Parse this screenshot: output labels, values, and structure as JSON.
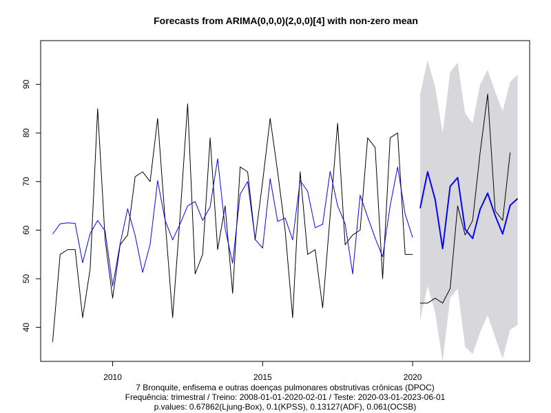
{
  "chart_data": {
    "type": "line",
    "title": "Forecasts from ARIMA(0,0,0)(2,0,0)[4] with non-zero mean",
    "xlabel_lines": [
      "7 Bronquite, enfisema e outras doenças pulmonares obstrutivas crônicas (DPOC)",
      "Frequência: trimestral / Treino: 2008-01-01-2020-02-01 / Teste: 2020-03-01-2023-06-01",
      "p.values: 0.67862(Ljung-Box), 0.1(KPSS), 0.13127(ADF), 0.061(OCSB)"
    ],
    "xlim": [
      2007.6,
      2023.9
    ],
    "ylim": [
      33,
      99
    ],
    "x_ticks": [
      2010,
      2015,
      2020
    ],
    "y_ticks": [
      40,
      50,
      60,
      70,
      80,
      90
    ],
    "grid": false,
    "colors": {
      "observed": "#000000",
      "fitted": "#0000ff",
      "forecast": "#0000ff",
      "interval": "#d8d8dc"
    },
    "observed": {
      "x": [
        2008.0,
        2008.25,
        2008.5,
        2008.75,
        2009.0,
        2009.25,
        2009.5,
        2009.75,
        2010.0,
        2010.25,
        2010.5,
        2010.75,
        2011.0,
        2011.25,
        2011.5,
        2011.75,
        2012.0,
        2012.25,
        2012.5,
        2012.75,
        2013.0,
        2013.25,
        2013.5,
        2013.75,
        2014.0,
        2014.25,
        2014.5,
        2014.75,
        2015.0,
        2015.25,
        2015.5,
        2015.75,
        2016.0,
        2016.25,
        2016.5,
        2016.75,
        2017.0,
        2017.25,
        2017.5,
        2017.75,
        2018.0,
        2018.25,
        2018.5,
        2018.75,
        2019.0,
        2019.25,
        2019.5,
        2019.75,
        2020.0
      ],
      "y": [
        37,
        55,
        56,
        56,
        42,
        52,
        85,
        58,
        46,
        57,
        59,
        71,
        72,
        70,
        83,
        62,
        42,
        63,
        86,
        51,
        55,
        79,
        56,
        65,
        47,
        73,
        72,
        58,
        70,
        83,
        72,
        60,
        42,
        72,
        55,
        56,
        44,
        63,
        82,
        57,
        59,
        60,
        79,
        77,
        50,
        79,
        80,
        55,
        55
      ]
    },
    "fitted": {
      "x": [
        2008.0,
        2008.25,
        2008.5,
        2008.75,
        2009.0,
        2009.25,
        2009.5,
        2009.75,
        2010.0,
        2010.25,
        2010.5,
        2010.75,
        2011.0,
        2011.25,
        2011.5,
        2011.75,
        2012.0,
        2012.25,
        2012.5,
        2012.75,
        2013.0,
        2013.25,
        2013.5,
        2013.75,
        2014.0,
        2014.25,
        2014.5,
        2014.75,
        2015.0,
        2015.25,
        2015.5,
        2015.75,
        2016.0,
        2016.25,
        2016.5,
        2016.75,
        2017.0,
        2017.25,
        2017.5,
        2017.75,
        2018.0,
        2018.25,
        2018.5,
        2018.75,
        2019.0,
        2019.25,
        2019.5,
        2019.75,
        2020.0
      ],
      "y": [
        59.2,
        61.3,
        61.5,
        61.4,
        53.3,
        59.3,
        62.0,
        59.8,
        48.5,
        57.2,
        64.4,
        58.9,
        51.3,
        57.1,
        70.2,
        62.0,
        58.0,
        61.3,
        65.0,
        65.9,
        62.0,
        64.8,
        74.7,
        60.3,
        53.2,
        67.4,
        70.0,
        58.1,
        56.3,
        70.6,
        61.8,
        62.5,
        58.0,
        70.2,
        68.0,
        60.5,
        61.2,
        72.1,
        65.0,
        61.3,
        51.0,
        67.2,
        62.7,
        58.4,
        54.5,
        65.0,
        73.0,
        63.3,
        58.5
      ]
    },
    "test_observed": {
      "x": [
        2020.25,
        2020.5,
        2020.75,
        2021.0,
        2021.25,
        2021.5,
        2021.75,
        2022.0,
        2022.25,
        2022.5,
        2022.75,
        2023.0,
        2023.25
      ],
      "y": [
        45,
        45,
        46,
        45,
        48,
        65,
        59,
        62,
        76,
        88,
        64,
        62,
        76
      ]
    },
    "forecast": {
      "x": [
        2020.25,
        2020.5,
        2020.75,
        2021.0,
        2021.25,
        2021.5,
        2021.75,
        2022.0,
        2022.25,
        2022.5,
        2022.75,
        2023.0,
        2023.25,
        2023.5
      ],
      "mean": [
        64.5,
        72.0,
        66.3,
        56.2,
        69.0,
        70.8,
        60.2,
        58.3,
        64.3,
        67.6,
        63.0,
        59.2,
        65.1,
        66.5
      ],
      "lower": [
        41.5,
        48.5,
        43.0,
        33.0,
        46.0,
        48.0,
        36.0,
        34.5,
        39.0,
        42.5,
        38.0,
        33.5,
        39.5,
        40.5
      ],
      "upper": [
        88.0,
        95.0,
        89.5,
        80.0,
        92.5,
        94.5,
        84.0,
        82.0,
        90.0,
        93.0,
        88.5,
        84.5,
        90.5,
        92.0
      ]
    }
  }
}
